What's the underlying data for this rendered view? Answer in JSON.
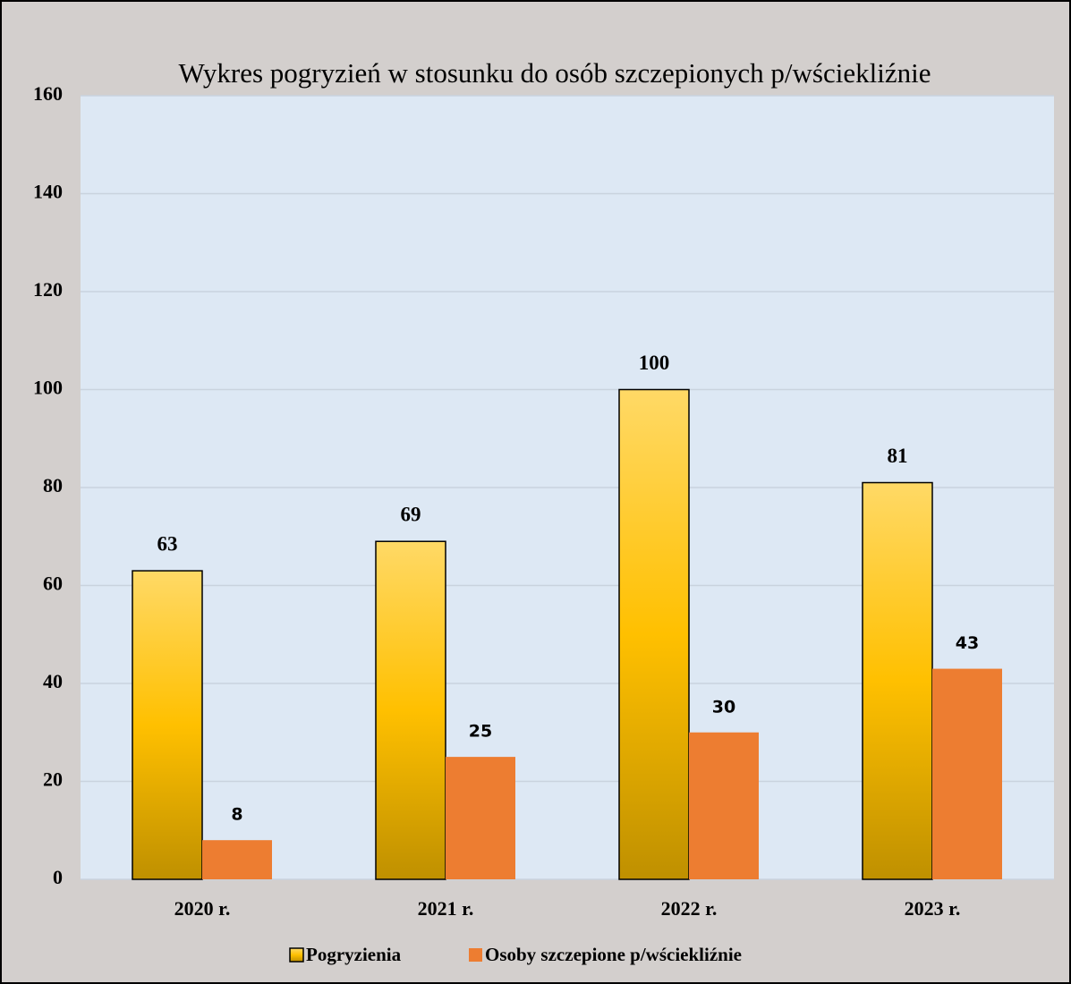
{
  "chart_data": {
    "type": "bar",
    "title": "Wykres pogryzień w stosunku do osób szczepionych p/wściekliźnie",
    "categories": [
      "2020 r.",
      "2021 r.",
      "2022 r.",
      "2023 r."
    ],
    "series": [
      {
        "name": "Pogryzienia",
        "color": "#ffc000",
        "values": [
          63,
          69,
          100,
          81
        ]
      },
      {
        "name": "Osoby szczepione p/wściekliźnie",
        "color": "#ed7d31",
        "values": [
          8,
          25,
          30,
          43
        ]
      }
    ],
    "ylim": [
      0,
      160
    ],
    "yticks": [
      0,
      20,
      40,
      60,
      80,
      100,
      120,
      140,
      160
    ],
    "grid": true,
    "legend": "bottom"
  }
}
